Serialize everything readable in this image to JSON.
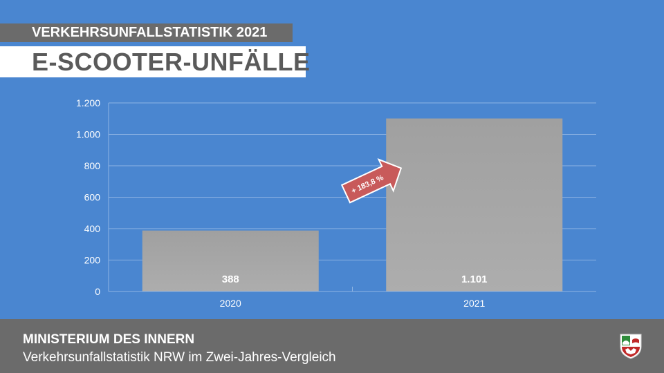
{
  "header": {
    "subtitle": "VERKEHRSUNFALLSTATISTIK 2021",
    "title": "E-SCOOTER-UNFÄLLE"
  },
  "footer": {
    "ministry": "MINISTERIUM DES INNERN",
    "description": "Verkehrsunfallstatistik NRW im Zwei-Jahres-Vergleich",
    "logo_icon": "nrw-crest-icon"
  },
  "colors": {
    "background": "#4a86d0",
    "band": "#6b6b6b",
    "bar": "#a6a6a6",
    "arrow": "#c85a5a",
    "text_light": "#ffffff"
  },
  "chart_data": {
    "type": "bar",
    "categories": [
      "2020",
      "2021"
    ],
    "values": [
      388,
      1101
    ],
    "data_labels": [
      "388",
      "1.101"
    ],
    "ylim": [
      0,
      1200
    ],
    "yticks": [
      0,
      200,
      400,
      600,
      800,
      1000,
      1200
    ],
    "ytick_labels": [
      "0",
      "200",
      "400",
      "600",
      "800",
      "1.000",
      "1.200"
    ],
    "grid": true,
    "annotation": "+ 183,8 %",
    "xlabel": "",
    "ylabel": ""
  }
}
